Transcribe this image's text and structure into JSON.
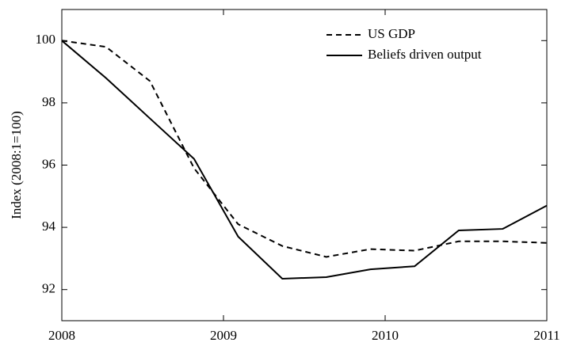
{
  "chart_data": {
    "type": "line",
    "y_label": "Index (2008:1=100)",
    "x": [
      2008,
      2008.273,
      2008.545,
      2008.818,
      2009.091,
      2009.364,
      2009.636,
      2009.909,
      2010.182,
      2010.455,
      2010.727,
      2011
    ],
    "series": [
      {
        "name": "US GDP",
        "color": "#000000",
        "dash": "7,5",
        "values": [
          100,
          99.8,
          98.7,
          95.9,
          94.1,
          93.4,
          93.05,
          93.3,
          93.25,
          93.55,
          93.55,
          93.5
        ]
      },
      {
        "name": "Beliefs driven output",
        "color": "#000000",
        "dash": "none",
        "values": [
          100,
          98.8,
          97.5,
          96.2,
          93.7,
          92.35,
          92.4,
          92.65,
          92.75,
          93.9,
          93.95,
          94.7
        ]
      }
    ],
    "xlim": [
      2008,
      2011
    ],
    "xticks": [
      2008,
      2009,
      2010,
      2011
    ],
    "ylim": [
      91,
      101
    ],
    "yticks": [
      92,
      94,
      96,
      98,
      100
    ],
    "legend": "top-right"
  }
}
